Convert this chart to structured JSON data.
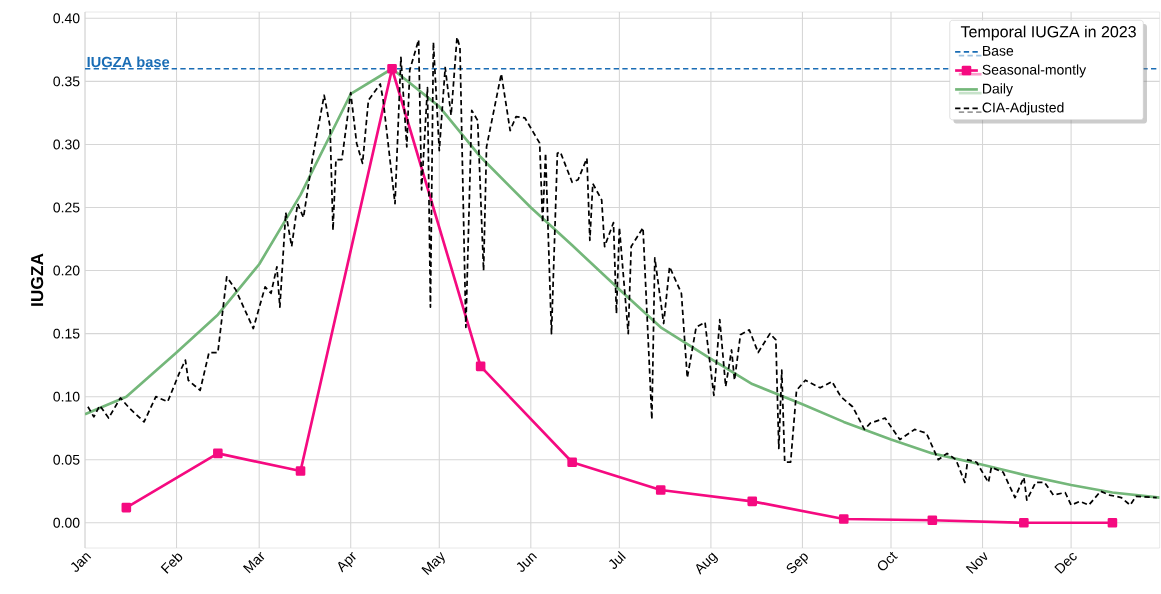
{
  "chart_data": {
    "type": "line",
    "ylabel": "IUGZA",
    "legend_title": "Temporal IUGZA in 2023",
    "xlim": [
      "2023-01-01",
      "2023-12-31"
    ],
    "ylim": [
      -0.02,
      0.405
    ],
    "xticks": [
      {
        "value": "2023-01-01",
        "label": "Jan"
      },
      {
        "value": "2023-02-01",
        "label": "Feb"
      },
      {
        "value": "2023-03-01",
        "label": "Mar"
      },
      {
        "value": "2023-04-01",
        "label": "Apr"
      },
      {
        "value": "2023-05-01",
        "label": "May"
      },
      {
        "value": "2023-06-01",
        "label": "Jun"
      },
      {
        "value": "2023-07-01",
        "label": "Jul"
      },
      {
        "value": "2023-08-01",
        "label": "Aug"
      },
      {
        "value": "2023-09-01",
        "label": "Sep"
      },
      {
        "value": "2023-10-01",
        "label": "Oct"
      },
      {
        "value": "2023-11-01",
        "label": "Nov"
      },
      {
        "value": "2023-12-01",
        "label": "Dec"
      }
    ],
    "yticks": [
      {
        "value": 0,
        "label": "0.00"
      },
      {
        "value": 0.05,
        "label": "0.05"
      },
      {
        "value": 0.1,
        "label": "0.10"
      },
      {
        "value": 0.15,
        "label": "0.15"
      },
      {
        "value": 0.2,
        "label": "0.20"
      },
      {
        "value": 0.25,
        "label": "0.25"
      },
      {
        "value": 0.3,
        "label": "0.30"
      },
      {
        "value": 0.35,
        "label": "0.35"
      },
      {
        "value": 0.4,
        "label": "0.40"
      }
    ],
    "grid": true,
    "legend": "top right",
    "annotations": [
      {
        "text": "IUGZA base",
        "x": "2023-01-01",
        "y": 0.36
      }
    ],
    "series": [
      {
        "name": "Base",
        "color": "#1a6db5",
        "line_style": "dashed",
        "marker": "none",
        "x": [
          "2023-01-01",
          "2023-12-31"
        ],
        "values": [
          0.36,
          0.36
        ]
      },
      {
        "name": "Seasonal-montly",
        "color": "#f50a80",
        "line_style": "solid",
        "marker": "square",
        "x": [
          "2023-01-15",
          "2023-02-15",
          "2023-03-15",
          "2023-04-15",
          "2023-05-15",
          "2023-06-15",
          "2023-07-15",
          "2023-08-15",
          "2023-09-15",
          "2023-10-15",
          "2023-11-15",
          "2023-12-15"
        ],
        "values": [
          0.012,
          0.055,
          0.041,
          0.36,
          0.124,
          0.048,
          0.026,
          0.017,
          0.003,
          0.002,
          0.0,
          0.0
        ]
      },
      {
        "name": "Daily",
        "color": "#74b77a",
        "line_style": "solid",
        "marker": "none",
        "x": [
          "2023-01-01",
          "2023-01-15",
          "2023-02-01",
          "2023-02-15",
          "2023-03-01",
          "2023-03-15",
          "2023-04-01",
          "2023-04-15",
          "2023-05-01",
          "2023-05-15",
          "2023-06-01",
          "2023-06-15",
          "2023-07-01",
          "2023-07-15",
          "2023-08-01",
          "2023-08-15",
          "2023-09-01",
          "2023-09-15",
          "2023-10-01",
          "2023-10-15",
          "2023-11-01",
          "2023-11-15",
          "2023-12-01",
          "2023-12-15",
          "2023-12-31"
        ],
        "values": [
          0.086,
          0.1,
          0.135,
          0.165,
          0.205,
          0.26,
          0.34,
          0.36,
          0.33,
          0.29,
          0.25,
          0.22,
          0.185,
          0.155,
          0.13,
          0.11,
          0.094,
          0.08,
          0.066,
          0.055,
          0.046,
          0.038,
          0.03,
          0.024,
          0.02
        ]
      },
      {
        "name": "CIA-Adjusted",
        "color": "#000000",
        "line_style": "dashed",
        "marker": "none",
        "x": [
          "2023-01-02",
          "2023-01-04",
          "2023-01-06",
          "2023-01-09",
          "2023-01-13",
          "2023-01-16",
          "2023-01-21",
          "2023-01-25",
          "2023-01-29",
          "2023-02-02",
          "2023-02-04",
          "2023-02-05",
          "2023-02-09",
          "2023-02-12",
          "2023-02-15",
          "2023-02-18",
          "2023-02-21",
          "2023-02-27",
          "2023-03-03",
          "2023-03-05",
          "2023-03-07",
          "2023-03-08",
          "2023-03-10",
          "2023-03-12",
          "2023-03-14",
          "2023-03-16",
          "2023-03-19",
          "2023-03-23",
          "2023-03-25",
          "2023-03-26",
          "2023-03-27",
          "2023-03-29",
          "2023-04-01",
          "2023-04-03",
          "2023-04-05",
          "2023-04-07",
          "2023-04-11",
          "2023-04-12",
          "2023-04-16",
          "2023-04-18",
          "2023-04-20",
          "2023-04-21",
          "2023-04-24",
          "2023-04-25",
          "2023-04-27",
          "2023-04-28",
          "2023-04-29",
          "2023-05-01",
          "2023-05-03",
          "2023-05-05",
          "2023-05-07",
          "2023-05-08",
          "2023-05-10",
          "2023-05-12",
          "2023-05-14",
          "2023-05-16",
          "2023-05-17",
          "2023-05-22",
          "2023-05-25",
          "2023-05-27",
          "2023-05-30",
          "2023-06-04",
          "2023-06-05",
          "2023-06-06",
          "2023-06-08",
          "2023-06-10",
          "2023-06-11",
          "2023-06-15",
          "2023-06-17",
          "2023-06-20",
          "2023-06-21",
          "2023-06-22",
          "2023-06-25",
          "2023-06-26",
          "2023-06-29",
          "2023-06-30",
          "2023-07-01",
          "2023-07-04",
          "2023-07-05",
          "2023-07-09",
          "2023-07-12",
          "2023-07-13",
          "2023-07-16",
          "2023-07-18",
          "2023-07-22",
          "2023-07-24",
          "2023-07-27",
          "2023-07-30",
          "2023-08-02",
          "2023-08-04",
          "2023-08-06",
          "2023-08-08",
          "2023-08-09",
          "2023-08-11",
          "2023-08-14",
          "2023-08-17",
          "2023-08-21",
          "2023-08-23",
          "2023-08-24",
          "2023-08-25",
          "2023-08-26",
          "2023-08-28",
          "2023-08-30",
          "2023-09-02",
          "2023-09-07",
          "2023-09-11",
          "2023-09-14",
          "2023-09-18",
          "2023-09-22",
          "2023-09-24",
          "2023-09-29",
          "2023-10-04",
          "2023-10-09",
          "2023-10-13",
          "2023-10-17",
          "2023-10-20",
          "2023-10-23",
          "2023-10-26",
          "2023-10-27",
          "2023-10-30",
          "2023-11-03",
          "2023-11-04",
          "2023-11-08",
          "2023-11-12",
          "2023-11-15",
          "2023-11-16",
          "2023-11-19",
          "2023-11-22",
          "2023-11-25",
          "2023-11-29",
          "2023-12-01",
          "2023-12-04",
          "2023-12-07",
          "2023-12-11",
          "2023-12-14",
          "2023-12-18",
          "2023-12-21",
          "2023-12-23",
          "2023-12-30"
        ],
        "values": [
          0.092,
          0.084,
          0.093,
          0.083,
          0.099,
          0.091,
          0.08,
          0.1,
          0.096,
          0.119,
          0.129,
          0.113,
          0.105,
          0.135,
          0.135,
          0.195,
          0.185,
          0.154,
          0.187,
          0.182,
          0.203,
          0.171,
          0.246,
          0.219,
          0.253,
          0.242,
          0.288,
          0.339,
          0.314,
          0.232,
          0.288,
          0.288,
          0.341,
          0.301,
          0.285,
          0.335,
          0.348,
          0.335,
          0.253,
          0.369,
          0.298,
          0.359,
          0.383,
          0.264,
          0.345,
          0.171,
          0.381,
          0.295,
          0.361,
          0.323,
          0.385,
          0.377,
          0.155,
          0.327,
          0.319,
          0.2,
          0.298,
          0.356,
          0.311,
          0.322,
          0.321,
          0.301,
          0.238,
          0.293,
          0.15,
          0.293,
          0.294,
          0.27,
          0.272,
          0.289,
          0.224,
          0.269,
          0.256,
          0.219,
          0.238,
          0.166,
          0.234,
          0.15,
          0.219,
          0.234,
          0.082,
          0.21,
          0.158,
          0.203,
          0.182,
          0.115,
          0.155,
          0.159,
          0.101,
          0.161,
          0.108,
          0.137,
          0.113,
          0.149,
          0.153,
          0.135,
          0.15,
          0.145,
          0.059,
          0.121,
          0.048,
          0.048,
          0.105,
          0.113,
          0.107,
          0.112,
          0.1,
          0.092,
          0.074,
          0.079,
          0.083,
          0.066,
          0.074,
          0.071,
          0.05,
          0.055,
          0.05,
          0.032,
          0.05,
          0.048,
          0.032,
          0.044,
          0.04,
          0.02,
          0.036,
          0.018,
          0.032,
          0.032,
          0.022,
          0.024,
          0.014,
          0.017,
          0.014,
          0.025,
          0.022,
          0.02,
          0.014,
          0.021,
          0.02
        ]
      }
    ]
  }
}
